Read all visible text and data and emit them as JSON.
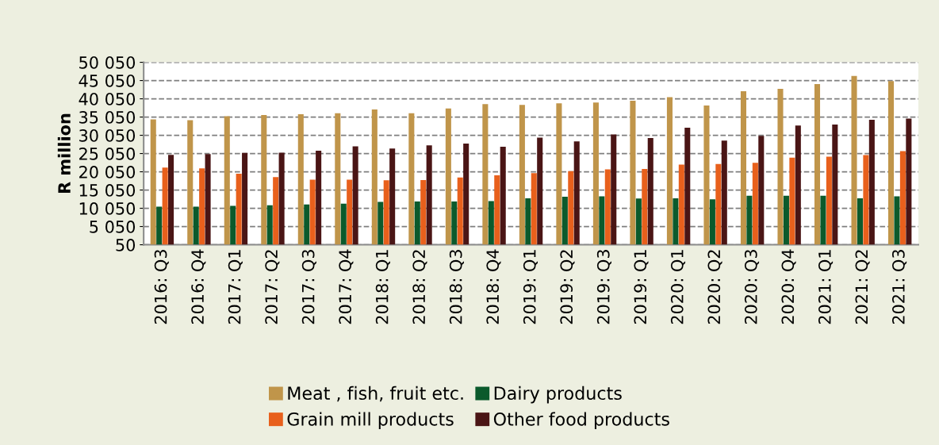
{
  "chart_data": {
    "type": "bar",
    "ylabel": "R million",
    "categories": [
      "2016: Q3",
      "2016: Q4",
      "2017: Q1",
      "2017: Q2",
      "2017: Q3",
      "2017: Q4",
      "2018: Q1",
      "2018: Q2",
      "2018: Q3",
      "2018: Q4",
      "2019: Q1",
      "2019: Q2",
      "2019: Q3",
      "2019: Q1",
      "2020: Q1",
      "2020: Q2",
      "2020: Q3",
      "2020: Q4",
      "2021: Q1",
      "2021: Q2",
      "2021: Q3"
    ],
    "series": [
      {
        "name": "Meat , fish, fruit etc.",
        "color": "#c0954a",
        "values": [
          34400,
          34200,
          35300,
          35600,
          35800,
          36100,
          37100,
          36100,
          37400,
          38600,
          38400,
          38800,
          39000,
          39500,
          40500,
          38200,
          42100,
          42800,
          44100,
          46300,
          44900
        ]
      },
      {
        "name": "Dairy products",
        "color": "#0b5a2c",
        "values": [
          10500,
          10500,
          10700,
          10900,
          11100,
          11300,
          11800,
          11900,
          11900,
          12000,
          12800,
          13200,
          13300,
          12700,
          12800,
          12500,
          13500,
          13500,
          13500,
          12800,
          13300
        ]
      },
      {
        "name": "Grain mill products",
        "color": "#e8601c",
        "values": [
          21200,
          21000,
          19500,
          18600,
          17900,
          17900,
          17700,
          17800,
          18500,
          19100,
          19700,
          20200,
          20700,
          20800,
          22000,
          22200,
          22500,
          23900,
          24200,
          24600,
          25700
        ]
      },
      {
        "name": "Other food products",
        "color": "#4a1515",
        "values": [
          24700,
          24900,
          25200,
          25300,
          25800,
          27000,
          26400,
          27300,
          27800,
          26900,
          29400,
          28400,
          30300,
          29300,
          32100,
          28600,
          29900,
          32700,
          33000,
          34300,
          34600
        ]
      }
    ],
    "ylim": [
      50,
      50050
    ],
    "yticks": [
      {
        "value": 50,
        "label": "50"
      },
      {
        "value": 5050,
        "label": "5 050"
      },
      {
        "value": 10050,
        "label": "10 050"
      },
      {
        "value": 15050,
        "label": "15 050"
      },
      {
        "value": 20050,
        "label": "20 050"
      },
      {
        "value": 25050,
        "label": "25 050"
      },
      {
        "value": 30050,
        "label": "30 050"
      },
      {
        "value": 35050,
        "label": "35 050"
      },
      {
        "value": 40050,
        "label": "40 050"
      },
      {
        "value": 45050,
        "label": "45 050"
      },
      {
        "value": 50050,
        "label": "50 050"
      }
    ],
    "grid": "y",
    "legend": "bottom"
  }
}
